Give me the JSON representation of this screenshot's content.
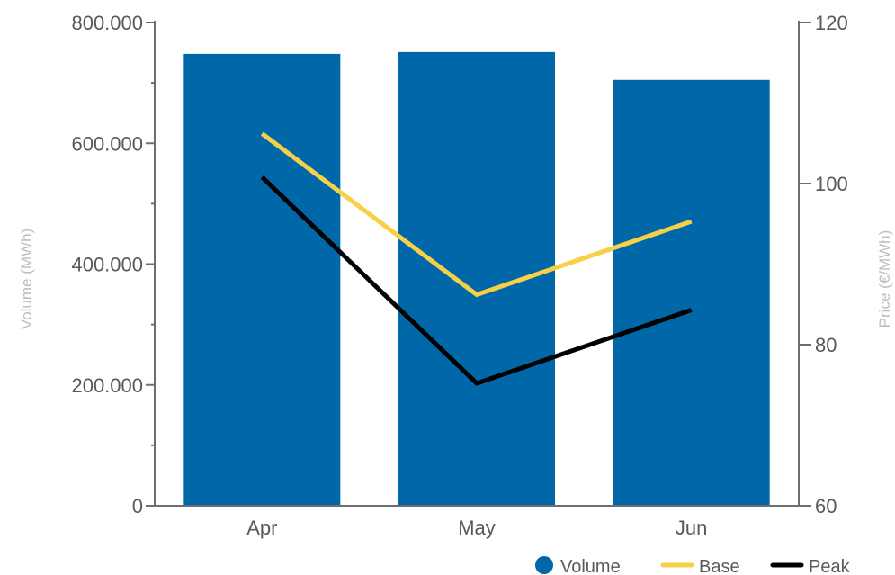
{
  "chart_data": {
    "type": "bar",
    "categories": [
      "Apr",
      "May",
      "Jun"
    ],
    "series": [
      {
        "name": "Volume",
        "type": "bar",
        "axis": "left",
        "values": [
          748000,
          751000,
          705000
        ],
        "color": "#0067a9"
      },
      {
        "name": "Base",
        "type": "line",
        "axis": "right",
        "values": [
          106.2,
          86.2,
          95.3
        ],
        "color": "#f7d046"
      },
      {
        "name": "Peak",
        "type": "line",
        "axis": "right",
        "values": [
          100.8,
          75.2,
          84.3
        ],
        "color": "#000000"
      }
    ],
    "y_left": {
      "label": "Volume (MWh)",
      "range": [
        0,
        800000
      ],
      "ticks": [
        0,
        200000,
        400000,
        600000,
        800000
      ],
      "tick_labels": [
        "0",
        "200.000",
        "400.000",
        "600.000",
        "800.000"
      ]
    },
    "y_right": {
      "label": "Price (€/MWh)",
      "range": [
        60,
        120
      ],
      "ticks": [
        60,
        80,
        100,
        120
      ],
      "tick_labels": [
        "60",
        "80",
        "100",
        "120"
      ]
    },
    "legend": {
      "position": "bottom-right",
      "entries": [
        "Volume",
        "Base",
        "Peak"
      ]
    },
    "grid": false
  }
}
